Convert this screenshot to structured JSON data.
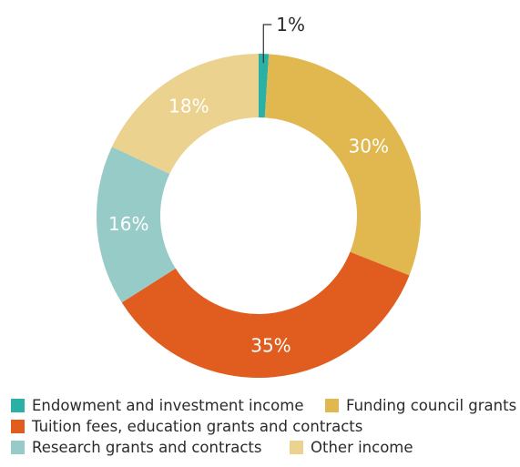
{
  "chart_data": {
    "type": "pie",
    "donut": true,
    "title": "",
    "categories": [
      "Endowment and investment income",
      "Funding council grants",
      "Tuition fees, education grants and contracts",
      "Research grants and contracts",
      "Other income"
    ],
    "values": [
      1,
      30,
      35,
      16,
      18
    ],
    "labels": [
      "1%",
      "30%",
      "35%",
      "16%",
      "18%"
    ],
    "colors": [
      "#2bb0a6",
      "#e0b84f",
      "#e05d1f",
      "#97cbc8",
      "#ecd28f"
    ],
    "legend_position": "bottom"
  },
  "legend": [
    {
      "label": "Endowment and investment income",
      "color": "#2bb0a6"
    },
    {
      "label": "Funding council grants",
      "color": "#e0b84f"
    },
    {
      "label": "Tuition fees, education grants and contracts",
      "color": "#e05d1f"
    },
    {
      "label": "Research grants and contracts",
      "color": "#97cbc8"
    },
    {
      "label": "Other income",
      "color": "#ecd28f"
    }
  ]
}
